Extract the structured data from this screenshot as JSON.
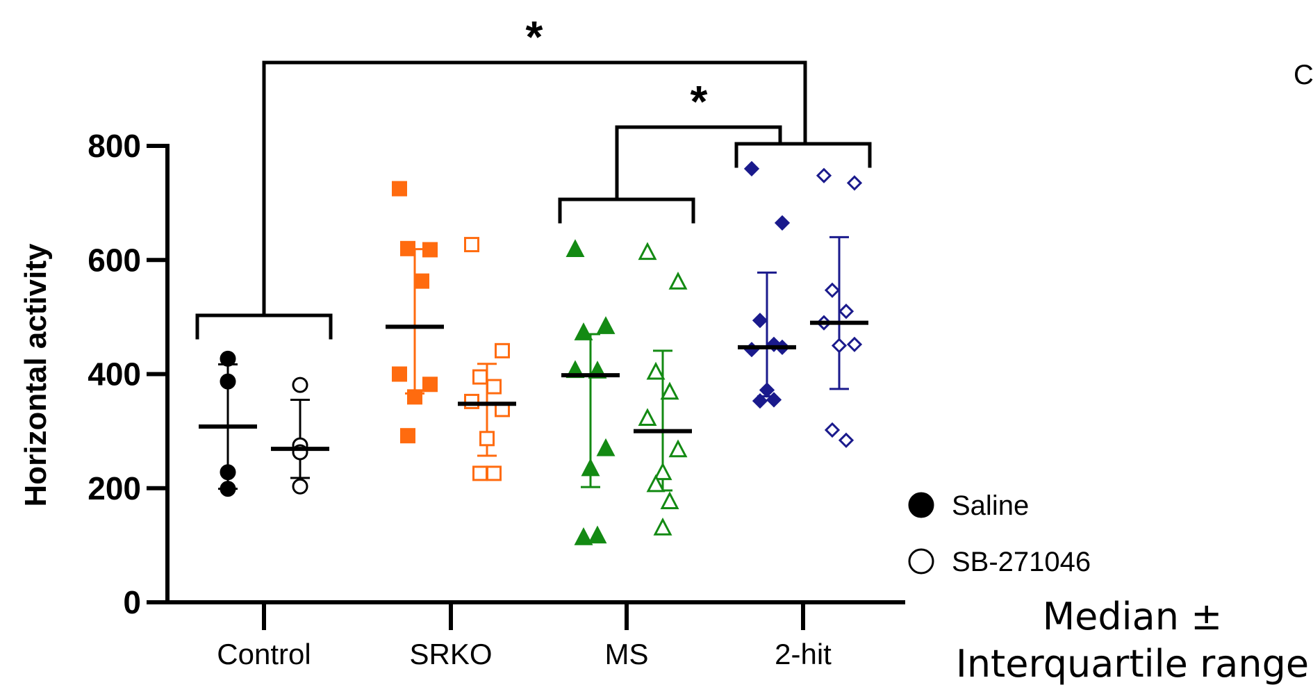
{
  "corner_letter": "C",
  "note": {
    "line1": "Median ±",
    "line2": "Interquartile range"
  },
  "chart_data": {
    "type": "scatter",
    "ylabel": "Horizontal activity",
    "xlabel": "",
    "ylim": [
      0,
      800
    ],
    "yticks": [
      0,
      200,
      400,
      600,
      800
    ],
    "categories": [
      "Control",
      "SRKO",
      "MS",
      "2-hit"
    ],
    "legend": {
      "placement": "bottom-right",
      "entries": [
        {
          "label": "Saline",
          "marker": "filled-circle"
        },
        {
          "label": "SB-271046",
          "marker": "open-circle"
        }
      ]
    },
    "colors": {
      "Control": "#000000",
      "SRKO": "#FF6B0F",
      "MS": "#138A13",
      "2-hit": "#1A1A8C"
    },
    "markers": {
      "Control": "circle",
      "SRKO": "square",
      "MS": "triangle",
      "2-hit": "diamond"
    },
    "series": [
      {
        "category": "Control",
        "treatment": "Saline",
        "values": [
          427,
          387,
          228,
          199
        ],
        "median": 308,
        "iqr": [
          199,
          417
        ]
      },
      {
        "category": "Control",
        "treatment": "SB-271046",
        "values": [
          381,
          275,
          263,
          203
        ],
        "median": 269,
        "iqr": [
          218,
          355
        ]
      },
      {
        "category": "SRKO",
        "treatment": "Saline",
        "values": [
          725,
          618,
          620,
          563,
          400,
          382,
          360,
          292
        ],
        "median": 483,
        "iqr": [
          366,
          619
        ]
      },
      {
        "category": "SRKO",
        "treatment": "SB-271046",
        "values": [
          627,
          441,
          395,
          378,
          352,
          338,
          287,
          226,
          226
        ],
        "median": 348,
        "iqr": [
          257,
          418
        ]
      },
      {
        "category": "MS",
        "treatment": "Saline",
        "values": [
          618,
          483,
          472,
          405,
          406,
          269,
          234,
          113,
          116
        ],
        "median": 398,
        "iqr": [
          202,
          470
        ]
      },
      {
        "category": "MS",
        "treatment": "SB-271046",
        "values": [
          613,
          561,
          403,
          368,
          322,
          267,
          227,
          206,
          176,
          130
        ],
        "median": 300,
        "iqr": [
          196,
          441
        ]
      },
      {
        "category": "2-hit",
        "treatment": "Saline",
        "values": [
          760,
          665,
          494,
          452,
          443,
          447,
          372,
          353,
          355
        ],
        "median": 447,
        "iqr": [
          361,
          578
        ]
      },
      {
        "category": "2-hit",
        "treatment": "SB-271046",
        "values": [
          748,
          735,
          547,
          510,
          490,
          452,
          450,
          302,
          284
        ],
        "median": 490,
        "iqr": [
          374,
          640
        ]
      }
    ],
    "comparisons": [
      {
        "groups": [
          "MS",
          "2-hit"
        ],
        "label": "*"
      },
      {
        "groups": [
          "Control",
          "2-hit"
        ],
        "label": "*"
      }
    ]
  }
}
